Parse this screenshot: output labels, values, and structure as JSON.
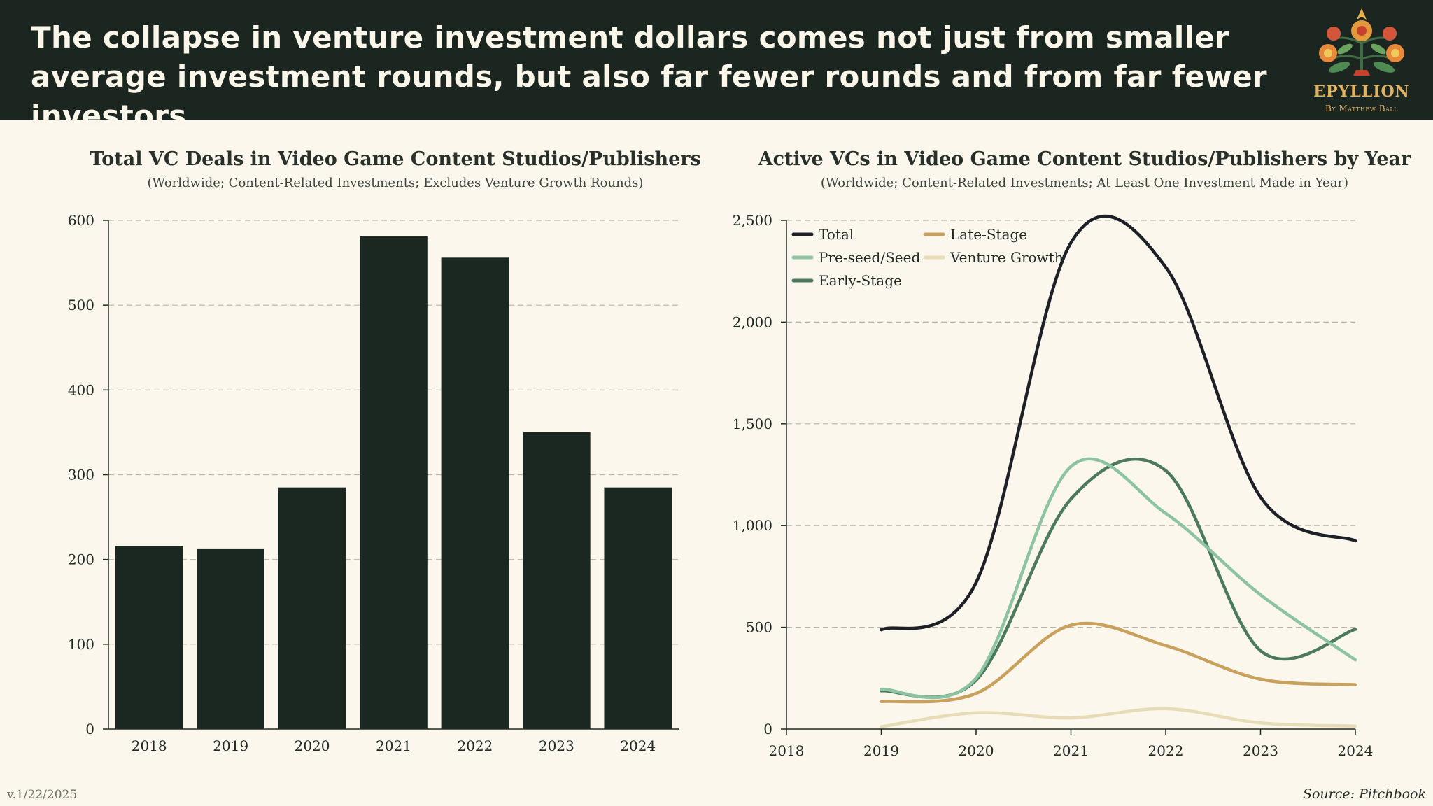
{
  "headline": "The collapse in venture investment dollars comes not just from smaller average investment rounds, but also far fewer rounds and from far fewer investors",
  "brand": {
    "name": "EPYLLION",
    "tagline": "By Matthew Ball"
  },
  "version": "v.1/22/2025",
  "source": "Source: Pitchbook",
  "colors": {
    "header_bg": "#1c2620",
    "page_bg": "#fcf7ec",
    "bar": "#1b2822",
    "accent": "#e3b261"
  },
  "chart_data": [
    {
      "type": "bar",
      "title": "Total VC Deals in Video Game Content Studios/Publishers",
      "subtitle": "(Worldwide; Content-Related Investments; Excludes Venture Growth Rounds)",
      "categories": [
        "2018",
        "2019",
        "2020",
        "2021",
        "2022",
        "2023",
        "2024"
      ],
      "values": [
        216,
        213,
        285,
        581,
        556,
        350,
        285
      ],
      "ylim": [
        0,
        600
      ],
      "yticks": [
        "0",
        "100",
        "200",
        "300",
        "400",
        "500",
        "600"
      ],
      "ytick_values": [
        0,
        100,
        200,
        300,
        400,
        500,
        600
      ],
      "grid": true,
      "color": "#1b2822"
    },
    {
      "type": "line",
      "title": "Active VCs in Video Game Content Studios/Publishers by Year",
      "subtitle": "(Worldwide; Content-Related Investments; At Least One Investment Made in Year)",
      "x": [
        2019,
        2020,
        2021,
        2022,
        2023,
        2024
      ],
      "xlim": [
        2018,
        2024
      ],
      "xticks": [
        "2018",
        "2019",
        "2020",
        "2021",
        "2022",
        "2023",
        "2024"
      ],
      "ylim": [
        0,
        2500
      ],
      "yticks": [
        "0",
        "500",
        "1,000",
        "1,500",
        "2,000",
        "2,500"
      ],
      "ytick_values": [
        0,
        500,
        1000,
        1500,
        2000,
        2500
      ],
      "grid": true,
      "legend_position": "top-left",
      "series": [
        {
          "name": "Total",
          "color": "#1d2127",
          "values": [
            488,
            720,
            2390,
            2270,
            1140,
            925
          ]
        },
        {
          "name": "Pre-seed/Seed",
          "color": "#8cc4a2",
          "values": [
            195,
            250,
            1290,
            1060,
            660,
            340
          ]
        },
        {
          "name": "Early-Stage",
          "color": "#4b7a5c",
          "values": [
            188,
            240,
            1130,
            1270,
            385,
            490
          ]
        },
        {
          "name": "Late-Stage",
          "color": "#c9a15c",
          "values": [
            135,
            175,
            510,
            410,
            245,
            218
          ]
        },
        {
          "name": "Venture Growth",
          "color": "#e8dcb8",
          "values": [
            12,
            80,
            55,
            100,
            30,
            15
          ]
        }
      ]
    }
  ]
}
